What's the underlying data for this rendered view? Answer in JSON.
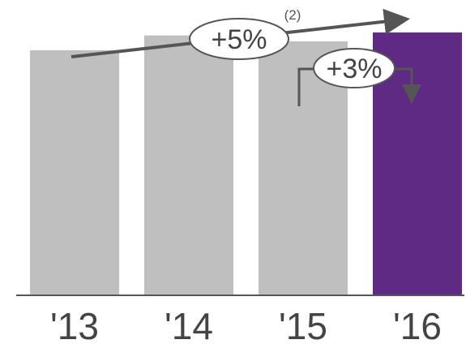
{
  "chart_data": {
    "type": "bar",
    "categories": [
      "'13",
      "'14",
      "'15",
      "'16"
    ],
    "values": [
      83,
      88,
      86,
      89
    ],
    "ylim": [
      0,
      100
    ],
    "title": "",
    "xlabel": "",
    "ylabel": "",
    "grid": false,
    "legend": "none",
    "colors": [
      "#bfbfbf",
      "#bfbfbf",
      "#bfbfbf",
      "#5e2a84"
    ],
    "annotations": [
      {
        "label": "+5%",
        "footnote": "(2)",
        "kind": "trend-arrow",
        "from": "'13",
        "to": "'16"
      },
      {
        "label": "+3%",
        "kind": "step-arrow",
        "from": "'15",
        "to": "'16"
      }
    ]
  }
}
